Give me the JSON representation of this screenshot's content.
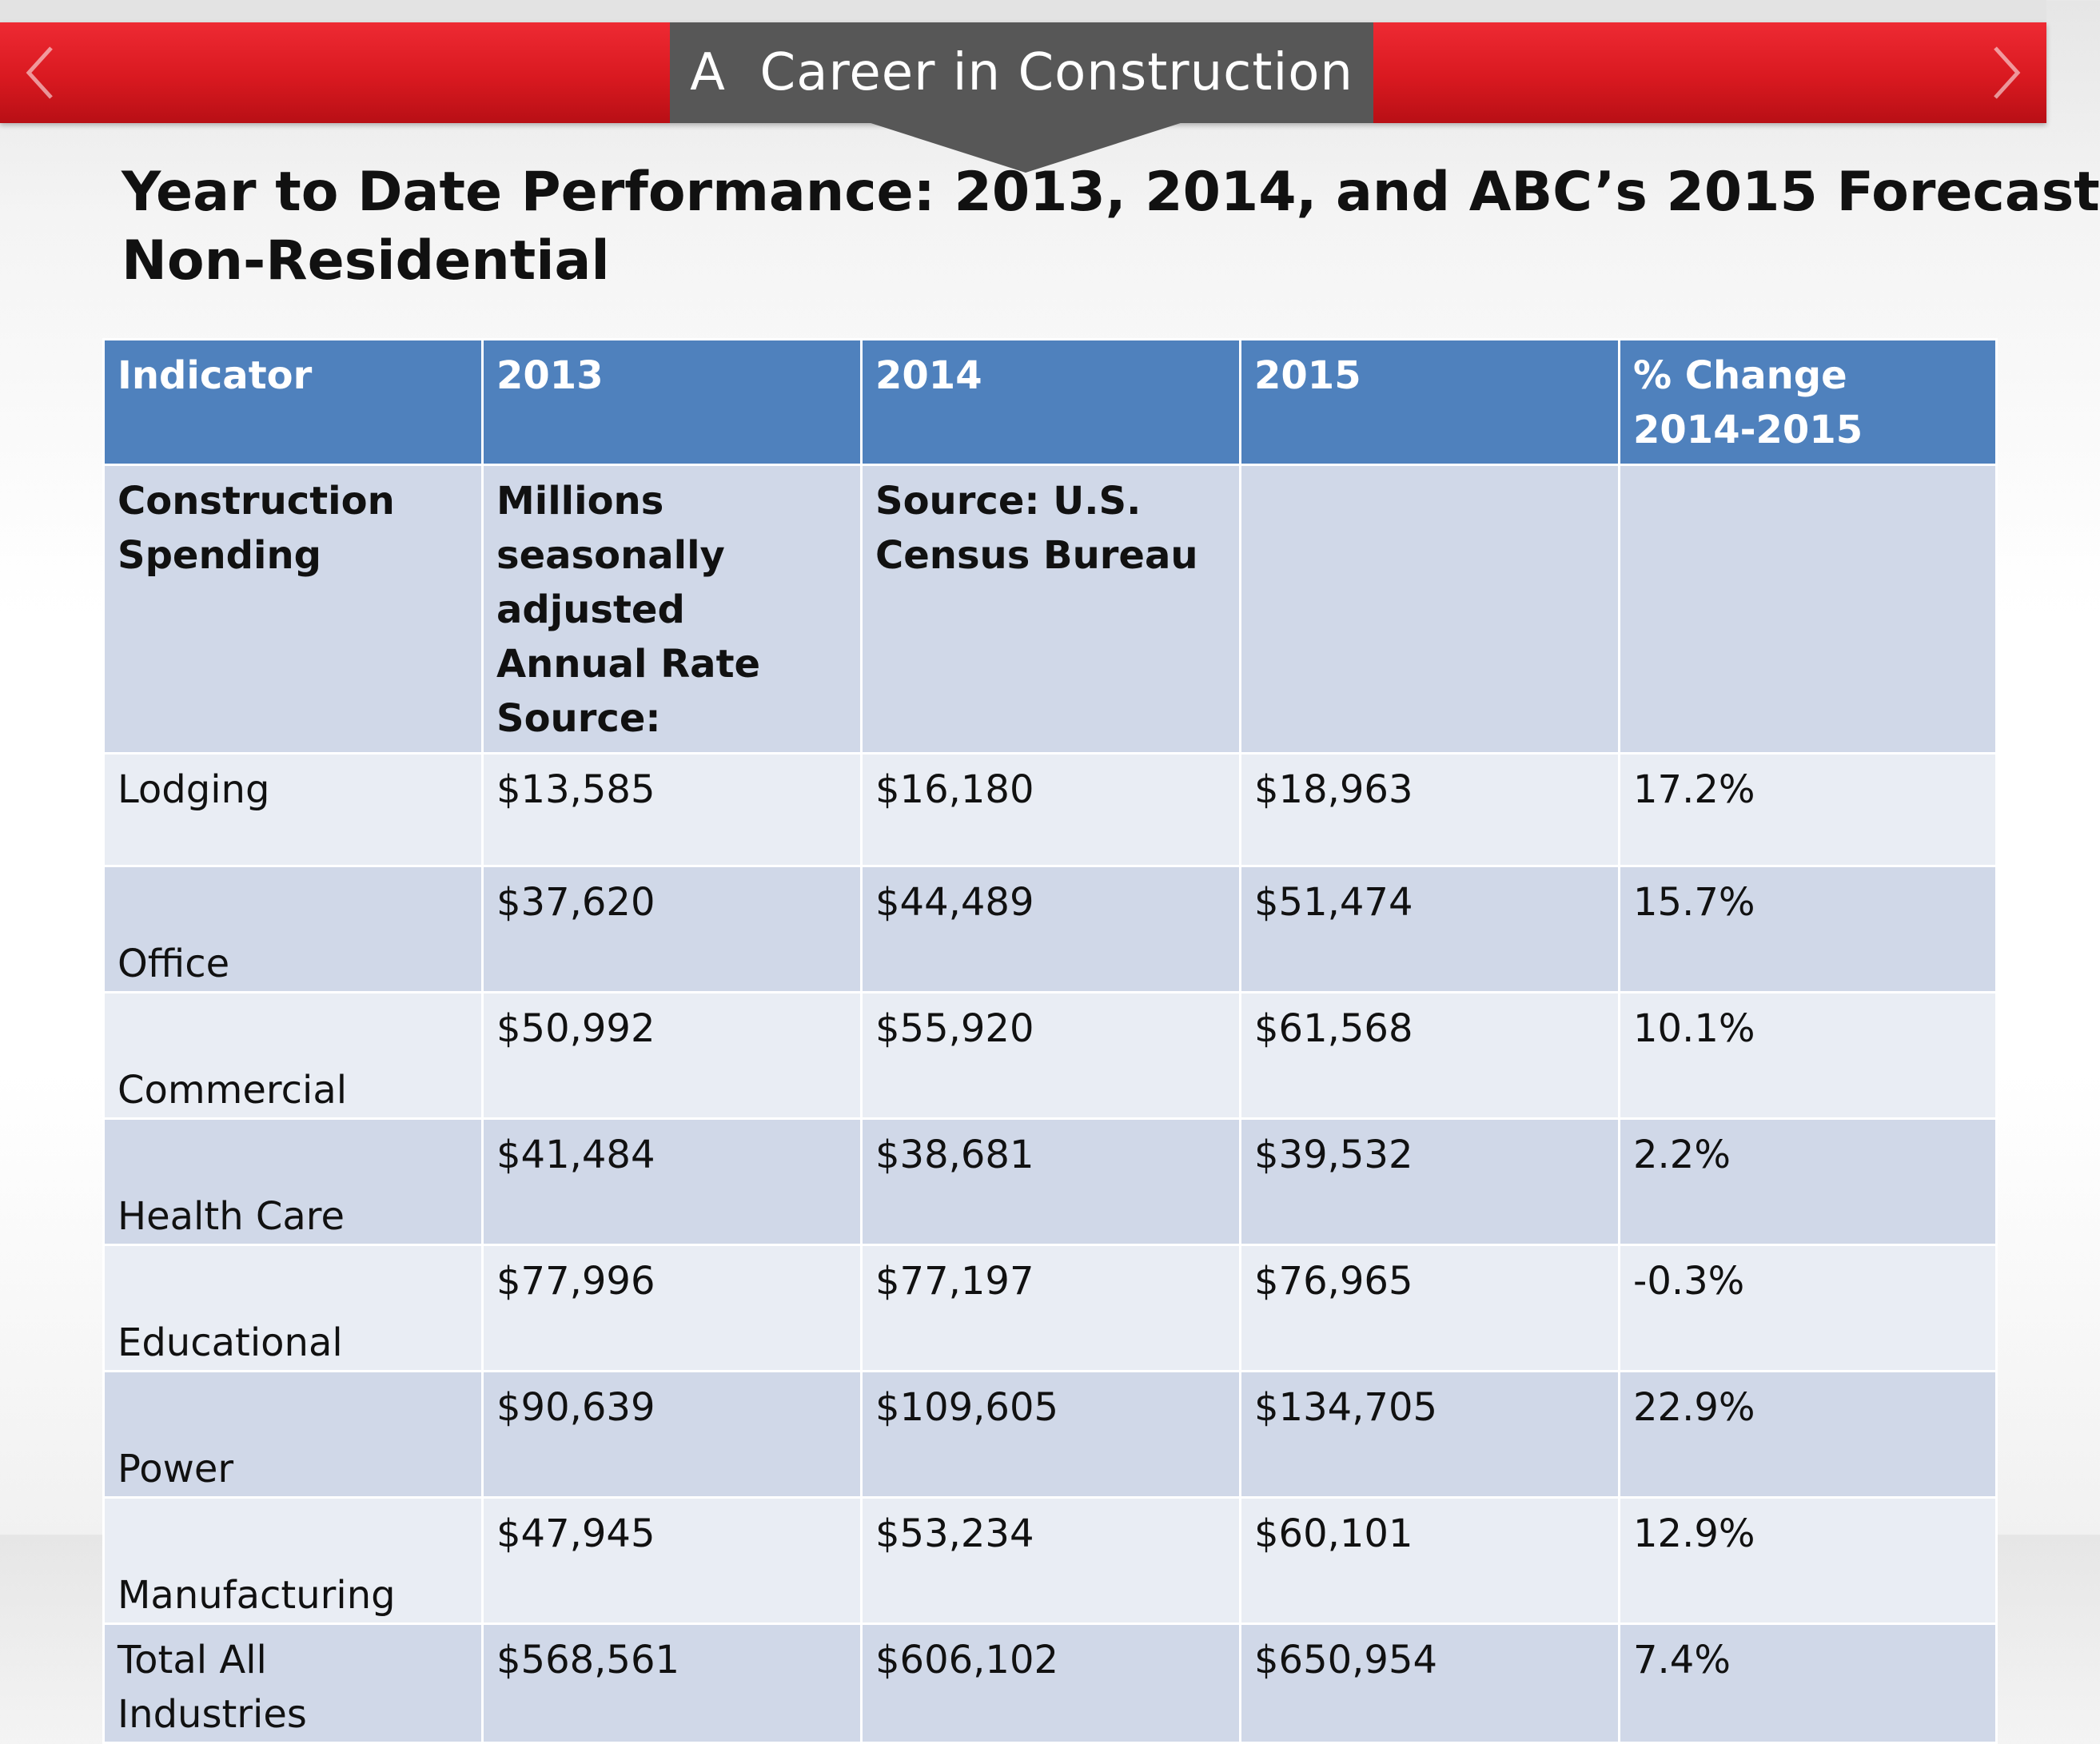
{
  "header": {
    "title": "A  Career in Construction"
  },
  "nav": {
    "prev_icon": "chevron-left-icon",
    "next_icon": "chevron-right-icon"
  },
  "heading": {
    "line1": "Year to Date Performance: 2013, 2014, and ABC’s 2015 Forecast",
    "line2": "Non-Residential"
  },
  "table": {
    "columns": [
      "Indicator",
      "2013",
      "2014",
      "2015",
      "% Change 2014-2015"
    ],
    "unit_row": [
      "Construction Spending",
      "Millions seasonally adjusted Annual Rate Source:",
      "Source: U.S. Census Bureau",
      "",
      ""
    ],
    "rows": [
      [
        "Lodging",
        "$13,585",
        "$16,180",
        "$18,963",
        "17.2%"
      ],
      [
        "Office",
        "$37,620",
        "$44,489",
        "$51,474",
        "15.7%"
      ],
      [
        "Commercial",
        "$50,992",
        "$55,920",
        "$61,568",
        "10.1%"
      ],
      [
        "Health Care",
        "$41,484",
        "$38,681",
        "$39,532",
        "2.2%"
      ],
      [
        "Educational",
        "$77,996",
        "$77,197",
        "$76,965",
        "-0.3%"
      ],
      [
        "Power",
        "$90,639",
        "$109,605",
        "$134,705",
        "22.9%"
      ],
      [
        "Manufacturing",
        "$47,945",
        "$53,234",
        "$60,101",
        "12.9%"
      ],
      [
        "Total All Industries",
        "$568,561",
        "$606,102",
        "$650,954",
        "7.4%"
      ]
    ]
  },
  "colors": {
    "header_bar": "#d91920",
    "title_tab": "#575757",
    "table_header": "#4f81bd",
    "row_dark": "#d0d8e8",
    "row_light": "#e9edf4"
  }
}
